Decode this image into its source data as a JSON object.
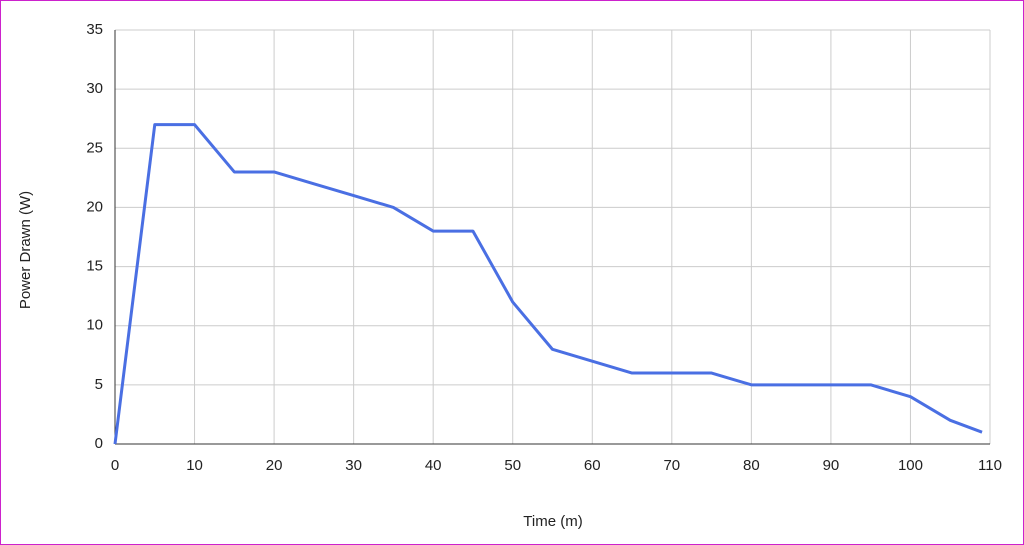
{
  "chart_data": {
    "type": "line",
    "x_label": "Time (m)",
    "y_label": "Power Drawn (W)",
    "x": [
      0,
      5,
      10,
      15,
      20,
      25,
      30,
      35,
      40,
      45,
      50,
      55,
      60,
      65,
      70,
      75,
      80,
      85,
      90,
      95,
      100,
      105,
      109
    ],
    "series": [
      {
        "name": "Power Drawn (W)",
        "color": "#4a6fe3",
        "values": [
          0,
          27,
          27,
          23,
          23,
          22,
          21,
          20,
          18,
          18,
          12,
          8,
          7,
          6,
          6,
          6,
          5,
          5,
          5,
          5,
          4,
          2,
          1
        ]
      }
    ],
    "xlim": [
      0,
      110
    ],
    "xticks": [
      0,
      10,
      20,
      30,
      40,
      50,
      60,
      70,
      80,
      90,
      100,
      110
    ],
    "ylim": [
      0,
      35
    ],
    "yticks": [
      0,
      5,
      10,
      15,
      20,
      25,
      30,
      35
    ],
    "grid": true
  }
}
